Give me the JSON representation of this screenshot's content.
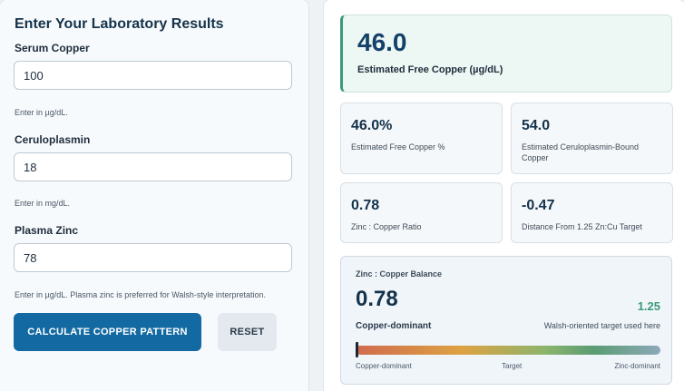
{
  "form": {
    "title": "Enter Your Laboratory Results",
    "fields": [
      {
        "label": "Serum Copper",
        "value": "100",
        "help": "Enter in µg/dL."
      },
      {
        "label": "Ceruloplasmin",
        "value": "18",
        "help": "Enter in mg/dL."
      },
      {
        "label": "Plasma Zinc",
        "value": "78",
        "help": "Enter in µg/dL. Plasma zinc is preferred for Walsh-style interpretation."
      }
    ],
    "calculate_label": "CALCULATE COPPER PATTERN",
    "reset_label": "RESET"
  },
  "results": {
    "hero": {
      "value": "46.0",
      "label": "Estimated Free Copper (µg/dL)"
    },
    "stats": [
      {
        "value": "46.0%",
        "label": "Estimated Free Copper %"
      },
      {
        "value": "54.0",
        "label": "Estimated Ceruloplasmin-Bound Copper"
      },
      {
        "value": "0.78",
        "label": "Zinc : Copper Ratio"
      },
      {
        "value": "-0.47",
        "label": "Distance From 1.25 Zn:Cu Target"
      }
    ],
    "balance": {
      "title": "Zinc : Copper Balance",
      "value": "0.78",
      "target_value": "1.25",
      "status": "Copper-dominant",
      "target_note": "Walsh-oriented target used here",
      "marker_fraction": 0.0,
      "scale": {
        "left": "Copper-dominant",
        "middle": "Target",
        "right": "Zinc-dominant"
      }
    }
  }
}
